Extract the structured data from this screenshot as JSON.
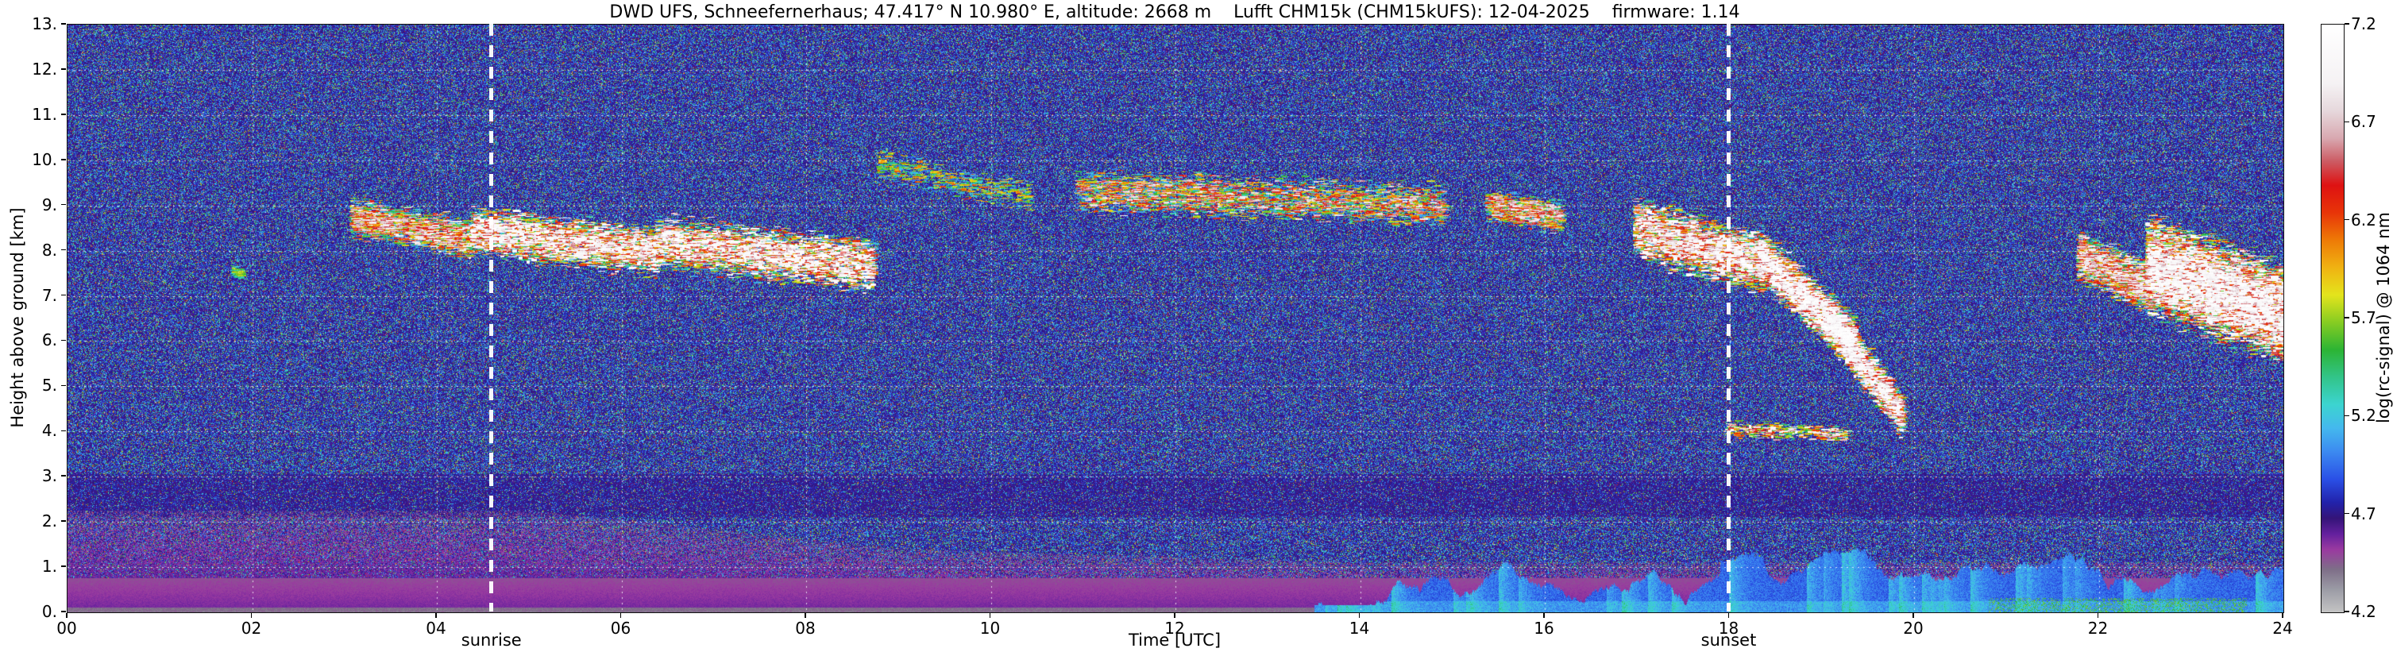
{
  "page": {
    "background": "#ffffff"
  },
  "chart_data": {
    "type": "heatmap",
    "title": "DWD UFS, Schneefernerhaus; 47.417° N 10.980° E, altitude: 2668 m    Lufft CHM15k (CHM15kUFS): 12-04-2025    firmware: 1.14",
    "xlabel": "Time [UTC]",
    "ylabel": "Height above ground [km]",
    "colorbar_label": "log(rc-signal) @ 1064 nm",
    "xlim": [
      0,
      24
    ],
    "ylim": [
      0,
      13
    ],
    "clim": [
      4.2,
      7.2
    ],
    "grid": true,
    "x_tick_values": [
      0,
      2,
      4,
      6,
      8,
      10,
      12,
      14,
      16,
      18,
      20,
      22,
      24
    ],
    "x_tick_labels": [
      "00",
      "02",
      "04",
      "06",
      "08",
      "10",
      "12",
      "14",
      "16",
      "18",
      "20",
      "22",
      "24"
    ],
    "y_tick_values": [
      0,
      1,
      2,
      3,
      4,
      5,
      6,
      7,
      8,
      9,
      10,
      11,
      12,
      13
    ],
    "y_tick_labels": [
      "0.",
      "1.",
      "2.",
      "3.",
      "4.",
      "5.",
      "6.",
      "7.",
      "8.",
      "9.",
      "10.",
      "11.",
      "12.",
      "13."
    ],
    "colorbar_tick_values": [
      4.2,
      4.7,
      5.2,
      5.7,
      6.2,
      6.7,
      7.2
    ],
    "colorbar_tick_labels": [
      "4.2",
      "4.7",
      "5.2",
      "5.7",
      "6.2",
      "6.7",
      "7.2"
    ],
    "annotations": [
      {
        "label": "sunrise",
        "time": 4.6
      },
      {
        "label": "sunset",
        "time": 18.0
      }
    ],
    "colormap_stops": [
      [
        4.2,
        "#c4c4c4"
      ],
      [
        4.32,
        "#9a9aa4"
      ],
      [
        4.42,
        "#7e6e88"
      ],
      [
        4.52,
        "#9a3aa0"
      ],
      [
        4.6,
        "#64209e"
      ],
      [
        4.68,
        "#341478"
      ],
      [
        4.76,
        "#2222aa"
      ],
      [
        4.88,
        "#2a50e6"
      ],
      [
        5.02,
        "#3c8af0"
      ],
      [
        5.14,
        "#44b8ee"
      ],
      [
        5.26,
        "#3cd4d0"
      ],
      [
        5.4,
        "#32c489"
      ],
      [
        5.54,
        "#2cb434"
      ],
      [
        5.68,
        "#86cc22"
      ],
      [
        5.82,
        "#e4e41c"
      ],
      [
        5.96,
        "#f0b212"
      ],
      [
        6.1,
        "#ee7a06"
      ],
      [
        6.24,
        "#e83408"
      ],
      [
        6.38,
        "#de1212"
      ],
      [
        6.5,
        "#cc5a62"
      ],
      [
        6.62,
        "#d8a8b0"
      ],
      [
        6.76,
        "#e6d8dc"
      ],
      [
        6.9,
        "#f5f2f4"
      ],
      [
        7.2,
        "#ffffff"
      ]
    ],
    "boundary_layer": {
      "top_km_night": 2.25,
      "top_km_day": 1.1,
      "surface_magenta_top_km": 0.75
    },
    "surface_blue_layer": {
      "t_start": 13.5,
      "t_end": 24.0,
      "typical_top_km": 0.9,
      "green_patch_hours": [
        20.8,
        23.6
      ]
    },
    "cloud_features": [
      {
        "t_start": 3.05,
        "t_end": 4.35,
        "h_start_km": 8.75,
        "h_end_km": 8.25,
        "sigma_km": 0.28,
        "density": 2600,
        "v_min": 5.0,
        "v_max": 7.0
      },
      {
        "t_start": 4.35,
        "t_end": 6.35,
        "h_start_km": 8.45,
        "h_end_km": 8.0,
        "sigma_km": 0.33,
        "density": 6000,
        "v_min": 5.0,
        "v_max": 7.2
      },
      {
        "t_start": 6.35,
        "t_end": 8.7,
        "h_start_km": 8.2,
        "h_end_km": 7.7,
        "sigma_km": 0.36,
        "density": 6500,
        "v_min": 5.0,
        "v_max": 7.2
      },
      {
        "t_start": 8.75,
        "t_end": 10.4,
        "h_start_km": 9.9,
        "h_end_km": 9.2,
        "sigma_km": 0.22,
        "density": 700,
        "v_min": 4.9,
        "v_max": 6.2
      },
      {
        "t_start": 10.9,
        "t_end": 14.9,
        "h_start_km": 9.35,
        "h_end_km": 9.0,
        "sigma_km": 0.3,
        "density": 4200,
        "v_min": 4.9,
        "v_max": 6.9
      },
      {
        "t_start": 15.35,
        "t_end": 16.15,
        "h_start_km": 9.0,
        "h_end_km": 8.75,
        "sigma_km": 0.22,
        "density": 1200,
        "v_min": 5.0,
        "v_max": 6.9
      },
      {
        "t_start": 16.95,
        "t_end": 18.35,
        "h_start_km": 8.5,
        "h_end_km": 7.7,
        "sigma_km": 0.42,
        "density": 5200,
        "v_min": 5.1,
        "v_max": 7.1
      },
      {
        "t_start": 18.3,
        "t_end": 19.35,
        "h_start_km": 7.9,
        "h_end_km": 5.9,
        "sigma_km": 0.36,
        "density": 5200,
        "v_min": 5.1,
        "v_max": 7.2
      },
      {
        "t_start": 19.0,
        "t_end": 19.85,
        "h_start_km": 6.6,
        "h_end_km": 4.35,
        "sigma_km": 0.3,
        "density": 3600,
        "v_min": 5.1,
        "v_max": 7.2
      },
      {
        "t_start": 17.95,
        "t_end": 19.25,
        "h_start_km": 4.05,
        "h_end_km": 3.95,
        "sigma_km": 0.12,
        "density": 420,
        "v_min": 5.4,
        "v_max": 7.1
      },
      {
        "t_start": 21.75,
        "t_end": 22.55,
        "h_start_km": 7.9,
        "h_end_km": 7.15,
        "sigma_km": 0.35,
        "density": 2600,
        "v_min": 5.1,
        "v_max": 7.0
      },
      {
        "t_start": 22.5,
        "t_end": 24.0,
        "h_start_km": 7.7,
        "h_end_km": 6.6,
        "sigma_km": 0.65,
        "density": 14000,
        "v_min": 5.2,
        "v_max": 7.2
      },
      {
        "t_start": 1.76,
        "t_end": 1.86,
        "h_start_km": 7.55,
        "h_end_km": 7.5,
        "sigma_km": 0.08,
        "density": 70,
        "v_min": 5.2,
        "v_max": 5.8
      }
    ]
  }
}
